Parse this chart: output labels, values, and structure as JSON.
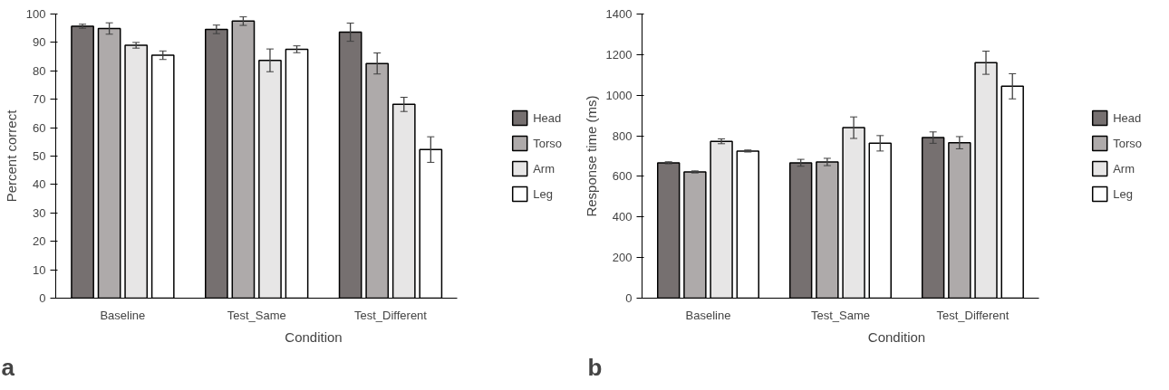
{
  "chart_data": [
    {
      "type": "bar",
      "xlabel": "Condition",
      "ylabel": "Percent correct",
      "categories": [
        "Baseline",
        "Test_Same",
        "Test_Different"
      ],
      "ylim": [
        0,
        100
      ],
      "yticks": [
        0,
        10,
        20,
        30,
        40,
        50,
        60,
        70,
        80,
        90,
        100
      ],
      "grid": false,
      "legend": "right",
      "annotations": [
        "a"
      ],
      "series": [
        {
          "name": "Head",
          "color": "#767070",
          "values": [
            95.7,
            94.6,
            93.6
          ],
          "errors": [
            0.7,
            1.5,
            3.2
          ]
        },
        {
          "name": "Torso",
          "color": "#aeaaaa",
          "values": [
            94.9,
            97.5,
            82.6
          ],
          "errors": [
            2,
            1.5,
            3.7
          ]
        },
        {
          "name": "Arm",
          "color": "#e7e6e6",
          "values": [
            89,
            83.7,
            68.2
          ],
          "errors": [
            1,
            4,
            2.5
          ]
        },
        {
          "name": "Leg",
          "color": "#ffffff",
          "values": [
            85.5,
            87.6,
            52.3
          ],
          "errors": [
            1.5,
            1.2,
            4.5
          ]
        }
      ]
    },
    {
      "type": "bar",
      "xlabel": "Condition",
      "ylabel": "Response time (ms)",
      "categories": [
        "Baseline",
        "Test_Same",
        "Test_Different"
      ],
      "ylim": [
        0,
        1400
      ],
      "yticks": [
        0,
        200,
        400,
        600,
        800,
        1000,
        1200,
        1400
      ],
      "grid": false,
      "legend": "right",
      "annotations": [
        "b"
      ],
      "series": [
        {
          "name": "Head",
          "color": "#767070",
          "values": [
            667,
            667,
            791
          ],
          "errors": [
            5,
            17,
            28
          ]
        },
        {
          "name": "Torso",
          "color": "#aeaaaa",
          "values": [
            622,
            671,
            766
          ],
          "errors": [
            5,
            18,
            30
          ]
        },
        {
          "name": "Arm",
          "color": "#e7e6e6",
          "values": [
            773,
            840,
            1160
          ],
          "errors": [
            12,
            53,
            57
          ]
        },
        {
          "name": "Leg",
          "color": "#ffffff",
          "values": [
            725,
            763,
            1044
          ],
          "errors": [
            5,
            38,
            62
          ]
        }
      ]
    }
  ]
}
